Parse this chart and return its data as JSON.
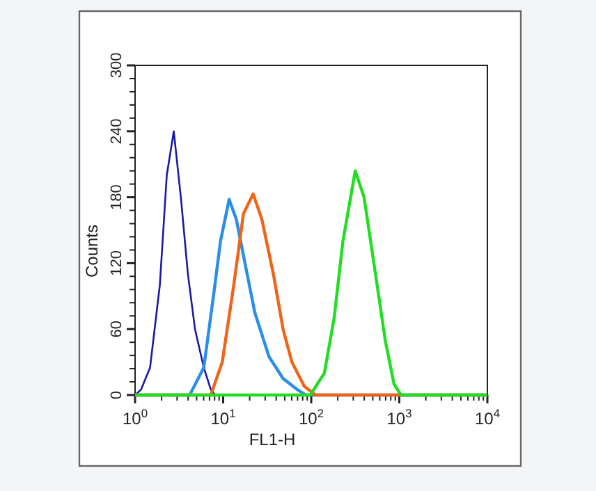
{
  "chart_data": {
    "type": "line",
    "xlabel": "FL1-H",
    "ylabel": "Counts",
    "log": "x",
    "grid": false,
    "marker": "none",
    "line_style": "solid",
    "xlim": [
      1,
      10000
    ],
    "ylim": [
      0,
      300
    ],
    "xticks": [
      {
        "value": 1,
        "label": "10$^{0}$"
      },
      {
        "value": 2,
        "label": null
      },
      {
        "value": 3,
        "label": null
      },
      {
        "value": 4,
        "label": null
      },
      {
        "value": 5,
        "label": null
      },
      {
        "value": 6,
        "label": null
      },
      {
        "value": 7,
        "label": null
      },
      {
        "value": 8,
        "label": null
      },
      {
        "value": 9,
        "label": null
      },
      {
        "value": 10,
        "label": "10$^{1}$"
      },
      {
        "value": 20,
        "label": null
      },
      {
        "value": 30,
        "label": null
      },
      {
        "value": 40,
        "label": null
      },
      {
        "value": 50,
        "label": null
      },
      {
        "value": 60,
        "label": null
      },
      {
        "value": 70,
        "label": null
      },
      {
        "value": 80,
        "label": null
      },
      {
        "value": 90,
        "label": null
      },
      {
        "value": 100,
        "label": "10$^{2}$"
      },
      {
        "value": 200,
        "label": null
      },
      {
        "value": 300,
        "label": null
      },
      {
        "value": 400,
        "label": null
      },
      {
        "value": 500,
        "label": null
      },
      {
        "value": 600,
        "label": null
      },
      {
        "value": 700,
        "label": null
      },
      {
        "value": 800,
        "label": null
      },
      {
        "value": 900,
        "label": null
      },
      {
        "value": 1000,
        "label": "10$^{3}$"
      },
      {
        "value": 2000,
        "label": null
      },
      {
        "value": 3000,
        "label": null
      },
      {
        "value": 4000,
        "label": null
      },
      {
        "value": 5000,
        "label": null
      },
      {
        "value": 6000,
        "label": null
      },
      {
        "value": 7000,
        "label": null
      },
      {
        "value": 8000,
        "label": null
      },
      {
        "value": 9000,
        "label": null
      },
      {
        "value": 10000,
        "label": "10$^{4}$"
      }
    ],
    "yticks": [
      0,
      {
        "value": 12,
        "label": null
      },
      {
        "value": 24,
        "label": null
      },
      {
        "value": 36,
        "label": null
      },
      {
        "value": 48,
        "label": null
      },
      60,
      {
        "value": 72,
        "label": null
      },
      {
        "value": 84,
        "label": null
      },
      {
        "value": 96,
        "label": null
      },
      {
        "value": 108,
        "label": null
      },
      120,
      {
        "value": 132,
        "label": null
      },
      {
        "value": 144,
        "label": null
      },
      {
        "value": 156,
        "label": null
      },
      {
        "value": 168,
        "label": null
      },
      180,
      {
        "value": 192,
        "label": null
      },
      {
        "value": 204,
        "label": null
      },
      {
        "value": 216,
        "label": null
      },
      {
        "value": 228,
        "label": null
      },
      240,
      {
        "value": 252,
        "label": null
      },
      {
        "value": 264,
        "label": null
      },
      {
        "value": 276,
        "label": null
      },
      {
        "value": 288,
        "label": null
      },
      300
    ],
    "series": [
      {
        "color": "#1a1aa8",
        "x": [
          1,
          1.17,
          1.48,
          1.91,
          2.29,
          2.75,
          3.31,
          3.98,
          4.79,
          6.03,
          7.24,
          8.13,
          10000
        ],
        "values": [
          0,
          5,
          25,
          100,
          200,
          240,
          180,
          110,
          60,
          25,
          5,
          0,
          0
        ]
      },
      {
        "color": "#2a8ee8",
        "x": [
          1,
          4.17,
          6.03,
          7.76,
          9.33,
          11.7,
          14.1,
          18.2,
          22.9,
          33.1,
          47.9,
          69.2,
          87.1,
          10000
        ],
        "values": [
          0,
          0,
          25,
          90,
          140,
          178,
          160,
          115,
          75,
          35,
          15,
          5,
          0,
          0
        ]
      },
      {
        "color": "#f06418",
        "x": [
          1,
          7.24,
          9.77,
          13.2,
          17.0,
          21.9,
          27.5,
          37.2,
          47.9,
          60.3,
          83.2,
          112,
          10000
        ],
        "values": [
          0,
          0,
          30,
          100,
          165,
          183,
          160,
          110,
          60,
          30,
          8,
          0,
          0
        ]
      },
      {
        "color": "#22dd22",
        "x": [
          1,
          97.7,
          141,
          182,
          229,
          316,
          398,
          537,
          692,
          871,
          1047,
          10000
        ],
        "values": [
          0,
          0,
          20,
          70,
          140,
          204,
          180,
          110,
          50,
          10,
          0,
          0
        ]
      }
    ]
  }
}
